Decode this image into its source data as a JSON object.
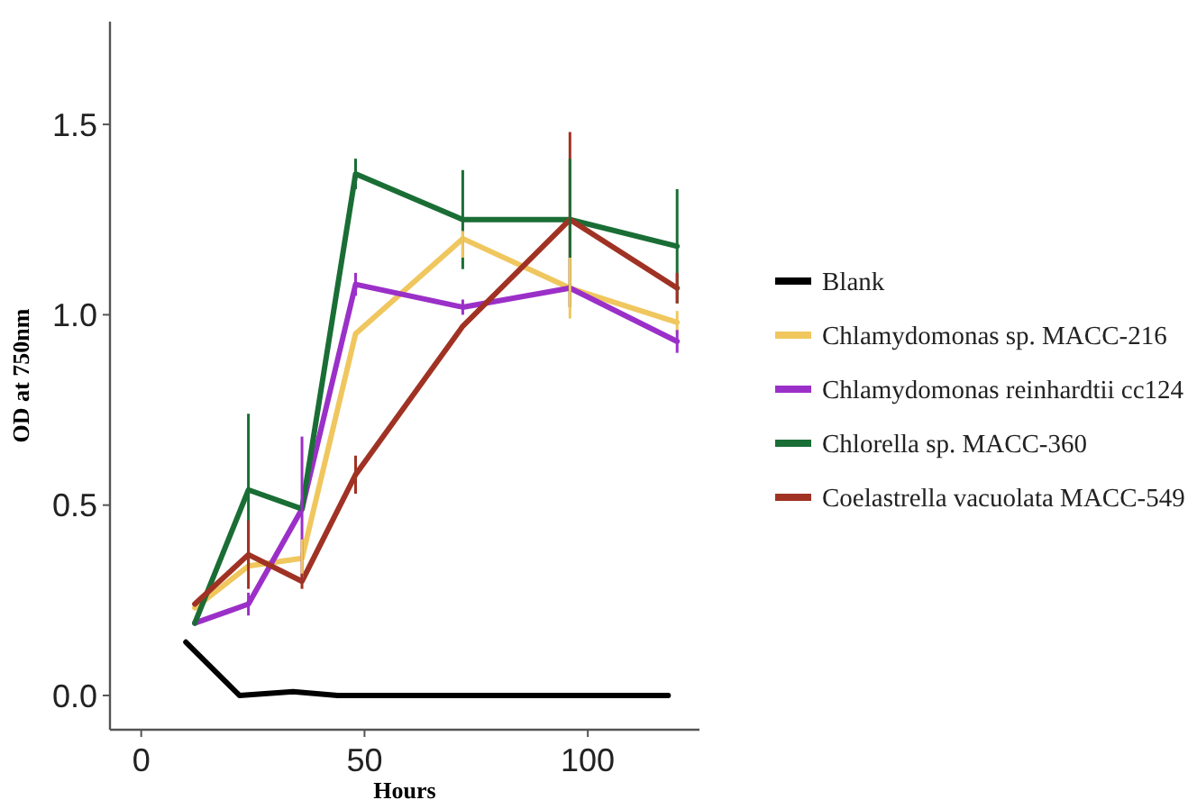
{
  "chart_data": {
    "type": "line",
    "xlabel": "Hours",
    "ylabel": "OD at 750nm",
    "xlim": [
      -7,
      125
    ],
    "xticks": [
      0,
      50,
      100
    ],
    "ylim": [
      -0.09,
      1.77
    ],
    "yticks": [
      {
        "value": 0,
        "label": "0.0"
      },
      {
        "value": 0.5,
        "label": "0.5"
      },
      {
        "value": 1,
        "label": "1.0"
      },
      {
        "value": 1.5,
        "label": "1.5"
      }
    ],
    "grid": false,
    "legend": "right",
    "marker": "none",
    "line_style": "solid",
    "series": [
      {
        "name": "Blank",
        "color": "#000000",
        "x": [
          10,
          22,
          34,
          44,
          70,
          118
        ],
        "values": [
          0.14,
          0.0,
          0.01,
          0.0,
          0.0,
          0.0
        ]
      },
      {
        "name": "Chlamydomonas sp. MACC-216",
        "color": "#f0c75e",
        "x": [
          12,
          24,
          36,
          48,
          72,
          96,
          120
        ],
        "values": [
          0.23,
          0.34,
          0.36,
          0.95,
          1.2,
          1.07,
          0.98
        ],
        "errors": [
          null,
          null,
          0.05,
          null,
          [
            1.15,
            1.22
          ],
          0.08,
          0.03
        ]
      },
      {
        "name": "Chlamydomonas reinhardtii cc124",
        "color": "#9b30c8",
        "x": [
          12,
          24,
          36,
          48,
          72,
          96,
          120
        ],
        "values": [
          0.19,
          0.24,
          0.49,
          1.08,
          1.02,
          1.07,
          0.93
        ],
        "errors": [
          null,
          0.03,
          0.19,
          0.03,
          0.02,
          null,
          0.03
        ]
      },
      {
        "name": "Chlorella sp. MACC-360",
        "color": "#1a6e35",
        "x": [
          12,
          24,
          36,
          48,
          72,
          96,
          120
        ],
        "values": [
          0.19,
          0.54,
          0.49,
          1.37,
          1.25,
          1.25,
          1.18
        ],
        "errors": [
          null,
          0.2,
          null,
          0.04,
          0.13,
          [
            1.02,
            1.41
          ],
          0.15
        ]
      },
      {
        "name": "Coelastrella vacuolata MACC-549",
        "color": "#a03224",
        "x": [
          12,
          24,
          36,
          48,
          72,
          96,
          120
        ],
        "values": [
          0.24,
          0.37,
          0.3,
          0.58,
          0.97,
          1.25,
          1.07
        ],
        "errors": [
          null,
          0.09,
          0.02,
          0.05,
          null,
          0.23,
          0.04
        ]
      }
    ]
  }
}
